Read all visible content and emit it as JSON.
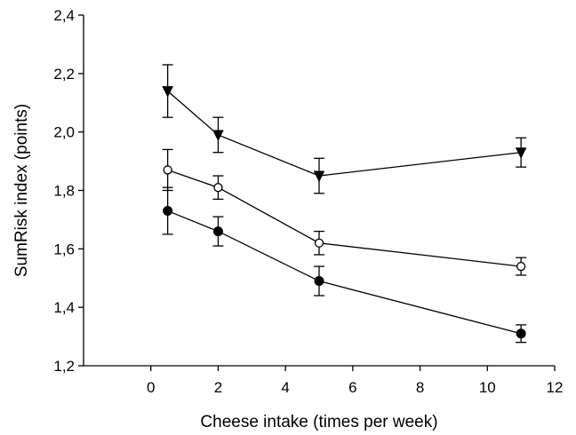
{
  "chart_data": {
    "type": "scatter",
    "xlabel": "Cheese intake (times per week)",
    "ylabel": "SumRisk index (points)",
    "xlim": [
      -2,
      12
    ],
    "ylim": [
      1.2,
      2.4
    ],
    "xticks": [
      0,
      2,
      4,
      6,
      8,
      10,
      12
    ],
    "xtick_labels": [
      "0",
      "2",
      "4",
      "6",
      "8",
      "10",
      "12"
    ],
    "yticks": [
      1.2,
      1.4,
      1.6,
      1.8,
      2.0,
      2.2,
      2.4
    ],
    "ytick_labels": [
      "1,2",
      "1,4",
      "1,6",
      "1,8",
      "2,0",
      "2,2",
      "2,4"
    ],
    "grid": false,
    "lines_connected": true,
    "error_bars": true,
    "series": [
      {
        "marker": "filled-triangle-down",
        "x": [
          0.5,
          2,
          5,
          11
        ],
        "y": [
          2.14,
          1.99,
          1.85,
          1.93
        ],
        "err": [
          0.09,
          0.06,
          0.06,
          0.05
        ]
      },
      {
        "marker": "open-circle",
        "x": [
          0.5,
          2,
          5,
          11
        ],
        "y": [
          1.87,
          1.81,
          1.62,
          1.54
        ],
        "err": [
          0.07,
          0.04,
          0.04,
          0.03
        ]
      },
      {
        "marker": "filled-circle",
        "x": [
          0.5,
          2,
          5,
          11
        ],
        "y": [
          1.73,
          1.66,
          1.49,
          1.31
        ],
        "err": [
          0.08,
          0.05,
          0.05,
          0.03
        ]
      }
    ]
  }
}
